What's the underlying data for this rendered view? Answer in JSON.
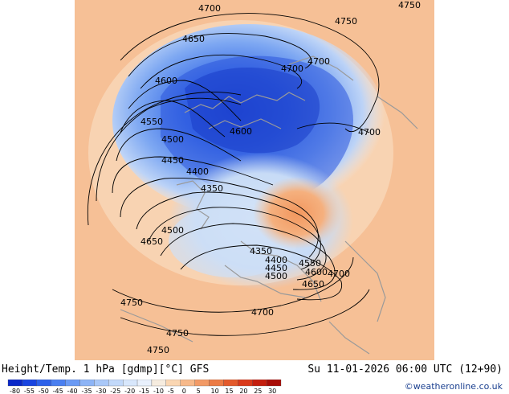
{
  "header": {
    "title_left": "Height/Temp. 1 hPa [gdmp][°C] GFS",
    "title_right": "Su 11-01-2026 06:00 UTC (12+90)",
    "credit": "©weatheronline.co.uk"
  },
  "colorbar": {
    "ticks": [
      "-80",
      "-55",
      "-50",
      "-45",
      "-40",
      "-35",
      "-30",
      "-25",
      "-20",
      "-15",
      "-10",
      "-5",
      "0",
      "5",
      "10",
      "15",
      "20",
      "25",
      "30"
    ],
    "colors": [
      "#0a28c8",
      "#1a45e0",
      "#2e62ea",
      "#4a7ff0",
      "#6b9af4",
      "#8db4f6",
      "#a9c8f8",
      "#c2d9fa",
      "#d8e7fc",
      "#e9f1fd",
      "#f6ecdf",
      "#fad6b2",
      "#f7b98a",
      "#f29a66",
      "#ec7b45",
      "#e35a2c",
      "#d9391a",
      "#c41e0e",
      "#a80c06"
    ]
  },
  "contour_labels": [
    {
      "id": "l1",
      "text": "4700"
    },
    {
      "id": "l2",
      "text": "4750"
    },
    {
      "id": "l3",
      "text": "4750"
    },
    {
      "id": "l4",
      "text": "4650"
    },
    {
      "id": "l5",
      "text": "4700"
    },
    {
      "id": "l6",
      "text": "4700"
    },
    {
      "id": "l7",
      "text": "4600"
    },
    {
      "id": "l8",
      "text": "4550"
    },
    {
      "id": "l9",
      "text": "4600"
    },
    {
      "id": "l10",
      "text": "4700"
    },
    {
      "id": "l11",
      "text": "4500"
    },
    {
      "id": "l12",
      "text": "4450"
    },
    {
      "id": "l13",
      "text": "4400"
    },
    {
      "id": "l14",
      "text": "4350"
    },
    {
      "id": "l15",
      "text": "4500"
    },
    {
      "id": "l16",
      "text": "4650"
    },
    {
      "id": "l17",
      "text": "4350"
    },
    {
      "id": "l18",
      "text": "4400"
    },
    {
      "id": "l19",
      "text": "4450"
    },
    {
      "id": "l20",
      "text": "4500"
    },
    {
      "id": "l21",
      "text": "4550"
    },
    {
      "id": "l22",
      "text": "4600"
    },
    {
      "id": "l23",
      "text": "4650"
    },
    {
      "id": "l24",
      "text": "4700"
    },
    {
      "id": "l25",
      "text": "4750"
    },
    {
      "id": "l26",
      "text": "4700"
    },
    {
      "id": "l27",
      "text": "4750"
    },
    {
      "id": "l28",
      "text": "4750"
    }
  ]
}
